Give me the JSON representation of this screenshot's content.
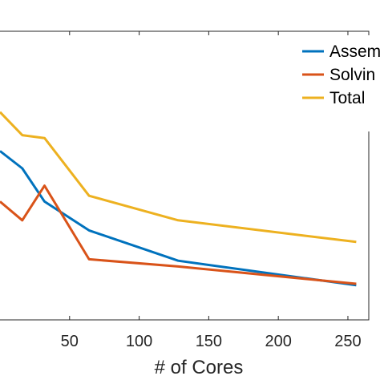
{
  "chart_data": {
    "type": "line",
    "xlabel": "# of Cores",
    "ylabel": "",
    "title": "",
    "x_ticks": [
      "50",
      "100",
      "150",
      "200",
      "250"
    ],
    "x_tick_values": [
      50,
      100,
      150,
      200,
      250
    ],
    "xlim": [
      0,
      265
    ],
    "ylim": [
      0,
      1
    ],
    "legend_placement": "top-right",
    "series": [
      {
        "name": "Assem",
        "color": "#0072BD",
        "points": [
          [
            0,
            0.585
          ],
          [
            16,
            0.525
          ],
          [
            32,
            0.41
          ],
          [
            64,
            0.31
          ],
          [
            128,
            0.205
          ],
          [
            256,
            0.12
          ]
        ]
      },
      {
        "name": "Solvin",
        "color": "#D95319",
        "points": [
          [
            0,
            0.41
          ],
          [
            16,
            0.345
          ],
          [
            32,
            0.465
          ],
          [
            64,
            0.21
          ],
          [
            128,
            0.185
          ],
          [
            256,
            0.125
          ]
        ]
      },
      {
        "name": "Total",
        "color": "#EDB120",
        "points": [
          [
            0,
            0.72
          ],
          [
            16,
            0.64
          ],
          [
            32,
            0.63
          ],
          [
            64,
            0.43
          ],
          [
            128,
            0.345
          ],
          [
            256,
            0.27
          ]
        ]
      }
    ]
  }
}
